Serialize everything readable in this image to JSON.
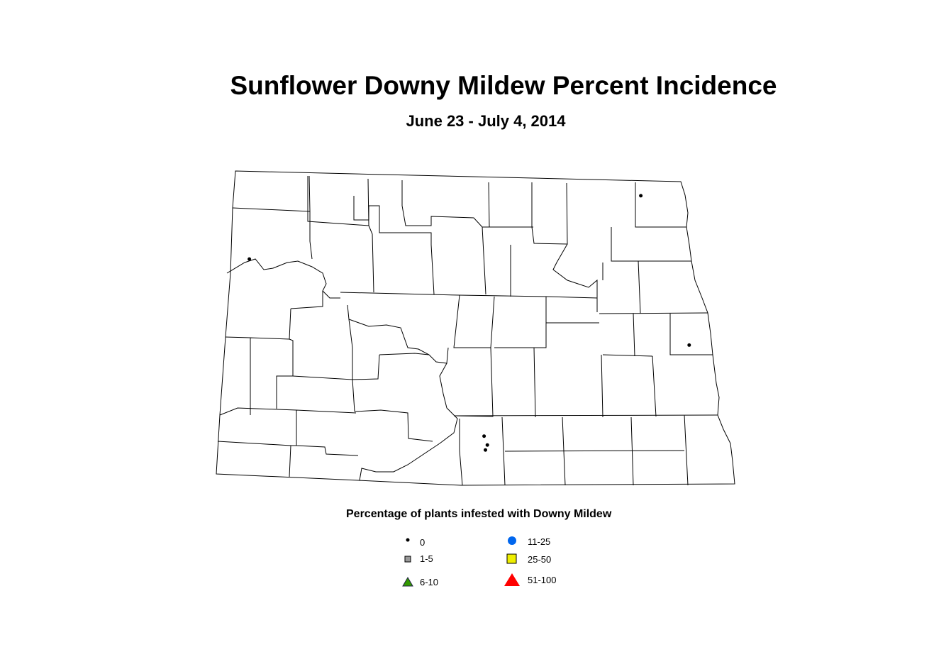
{
  "title": "Sunflower Downy Mildew Percent Incidence",
  "subtitle": "June 23 - July 4, 2014",
  "legend": {
    "title": "Percentage of plants infested with Downy Mildew",
    "items": [
      {
        "label": "0",
        "symbol": "small-dot",
        "color": "#000000"
      },
      {
        "label": "1-5",
        "symbol": "square",
        "color": "#999999"
      },
      {
        "label": "6-10",
        "symbol": "triangle",
        "color": "#339900"
      },
      {
        "label": "11-25",
        "symbol": "circle",
        "color": "#0066ee"
      },
      {
        "label": "25-50",
        "symbol": "square",
        "color": "#eeee00"
      },
      {
        "label": "51-100",
        "symbol": "triangle",
        "color": "#ff0000"
      }
    ]
  },
  "observations": [
    {
      "lon": -97.61,
      "lat": 48.8,
      "category": "0"
    },
    {
      "lon": -103.68,
      "lat": 48.16,
      "category": "0"
    },
    {
      "lon": -96.86,
      "lat": 47.29,
      "category": "0"
    },
    {
      "lon": -100.04,
      "lat": 46.37,
      "category": "0"
    },
    {
      "lon": -99.99,
      "lat": 46.28,
      "category": "0"
    },
    {
      "lon": -100.02,
      "lat": 46.23,
      "category": "0"
    }
  ]
}
